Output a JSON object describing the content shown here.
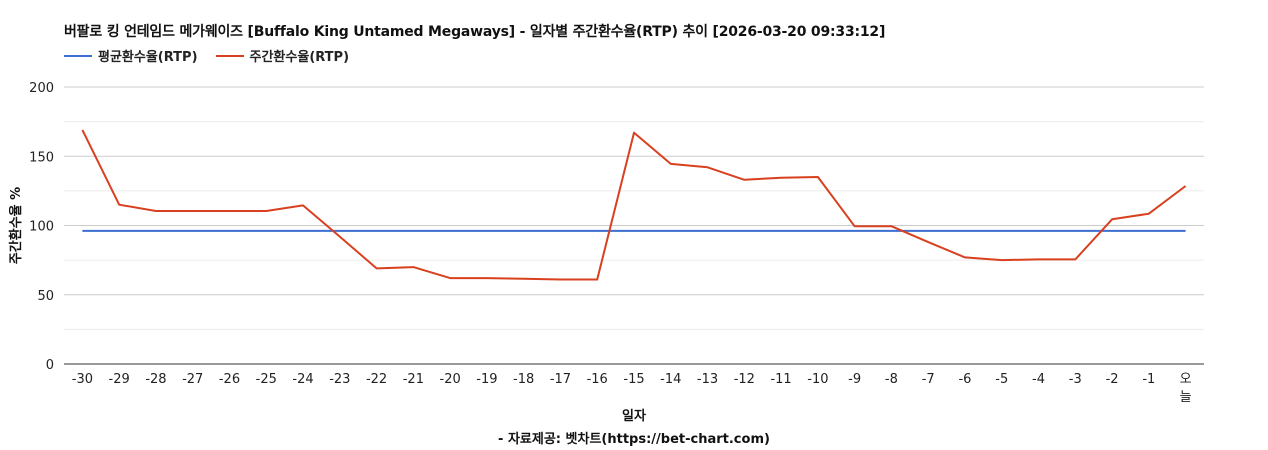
{
  "chart_data": {
    "type": "line",
    "title": "버팔로 킹 언테임드 메가웨이즈 [Buffalo King Untamed Megaways] - 일자별 주간환수율(RTP) 추이 [2026-03-20 09:33:12]",
    "xlabel": "일자",
    "ylabel": "주간환수율 %",
    "ylim": [
      0,
      200
    ],
    "yticks": [
      "0",
      "50",
      "100",
      "150",
      "200"
    ],
    "grid": true,
    "legend_position": "top-left",
    "source_note": "- 자료제공: 벳차트(https://bet-chart.com)",
    "categories": [
      "-30",
      "-29",
      "-28",
      "-27",
      "-26",
      "-25",
      "-24",
      "-23",
      "-22",
      "-21",
      "-20",
      "-19",
      "-18",
      "-17",
      "-16",
      "-15",
      "-14",
      "-13",
      "-12",
      "-11",
      "-10",
      "-9",
      "-8",
      "-7",
      "-6",
      "-5",
      "-4",
      "-3",
      "-2",
      "-1",
      "오늘"
    ],
    "series": [
      {
        "name": "평균환수율(RTP)",
        "color": "#3c6fd1",
        "values": [
          96.1,
          96.1,
          96.1,
          96.1,
          96.1,
          96.1,
          96.1,
          96.1,
          96.1,
          96.1,
          96.1,
          96.1,
          96.1,
          96.1,
          96.1,
          96.1,
          96.1,
          96.1,
          96.1,
          96.1,
          96.1,
          96.1,
          96.1,
          96.1,
          96.1,
          96.1,
          96.1,
          96.1,
          96.1,
          96.1,
          96.1
        ]
      },
      {
        "name": "주간환수율(RTP)",
        "color": "#d8401f",
        "values": [
          169,
          115,
          110.5,
          110.5,
          110.5,
          110.5,
          114.5,
          92,
          69,
          70,
          62,
          62,
          61.5,
          61,
          61,
          167,
          144.5,
          142,
          133,
          134.5,
          135,
          99.5,
          99.5,
          88,
          77,
          75,
          75.5,
          75.5,
          104.5,
          108.5,
          128.5
        ]
      }
    ]
  }
}
